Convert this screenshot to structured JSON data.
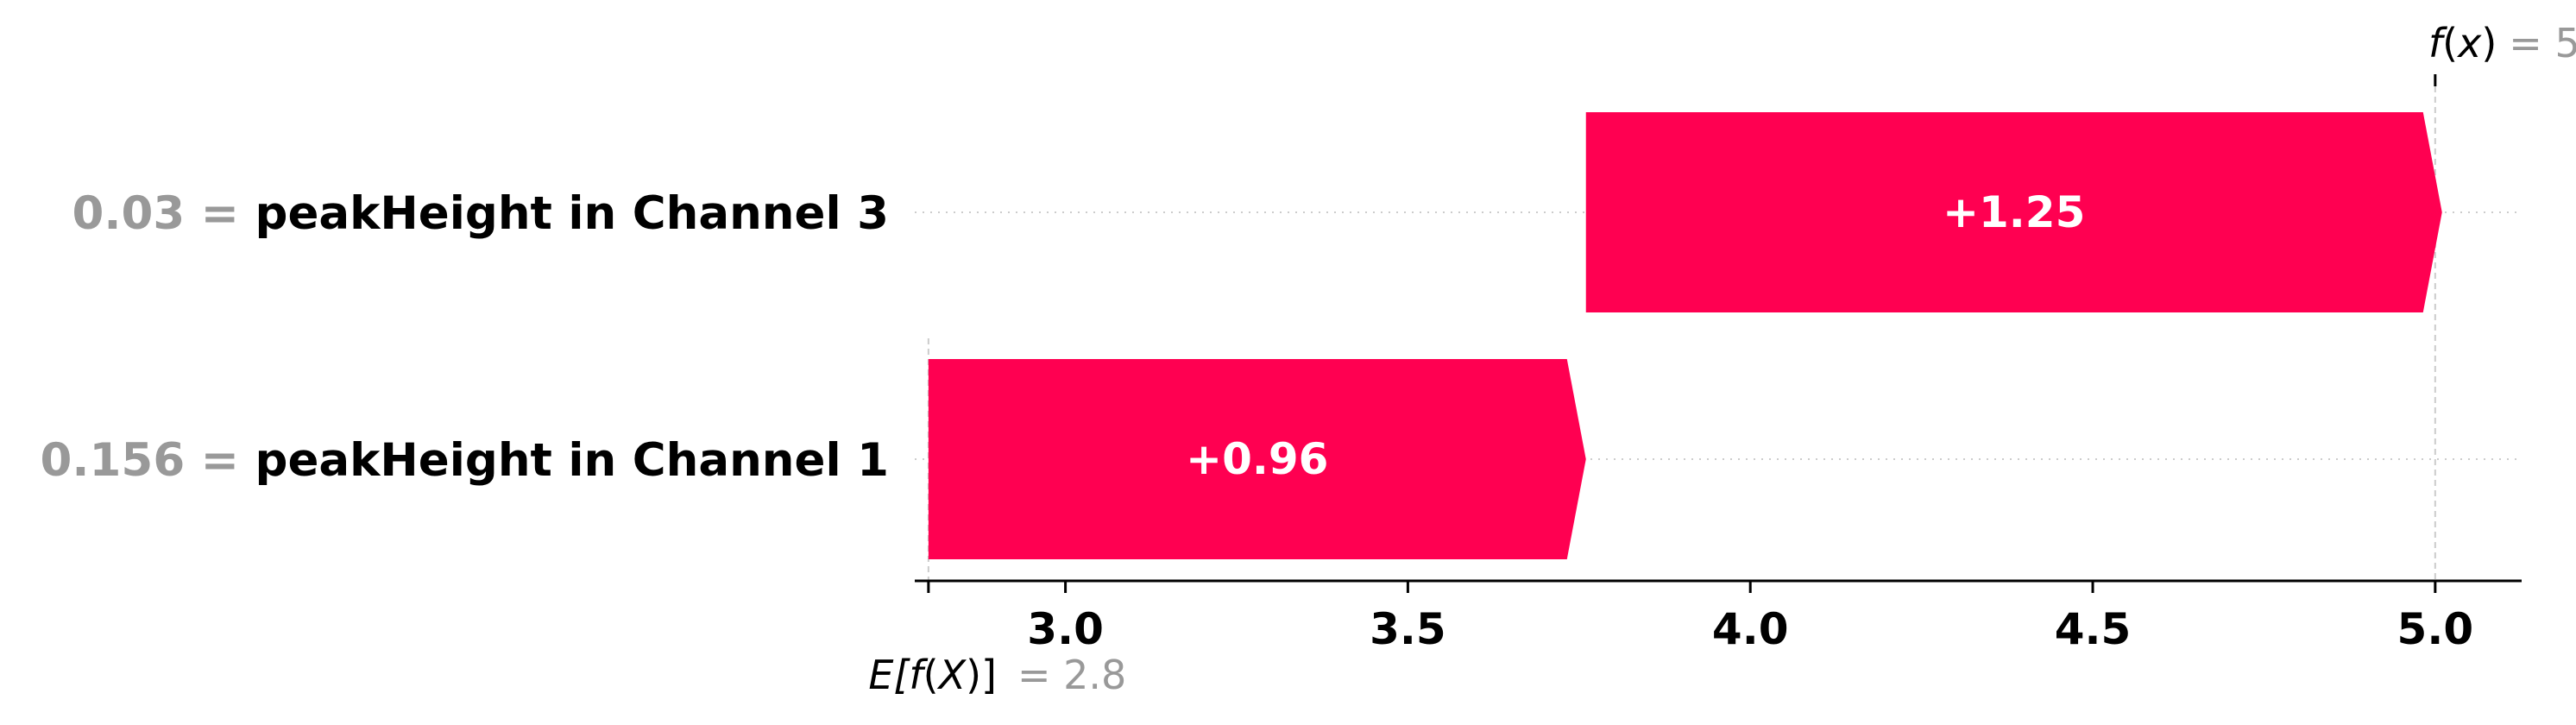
{
  "chart_data": {
    "type": "waterfall",
    "base_value": 2.8,
    "output_value": 5,
    "xlim": [
      2.78,
      5.13
    ],
    "xticks": [
      3.0,
      3.5,
      4.0,
      4.5,
      5.0
    ],
    "xtick_labels": [
      "3.0",
      "3.5",
      "4.0",
      "4.5",
      "5.0"
    ],
    "features": [
      {
        "value_label": "0.03 =",
        "name": "peakHeight in Channel 3",
        "start": 3.76,
        "contribution": 1.25,
        "label": "+1.25"
      },
      {
        "value_label": "0.156 =",
        "name": "peakHeight in Channel 1",
        "start": 2.8,
        "contribution": 0.96,
        "label": "+0.96"
      }
    ],
    "annotations": {
      "top": {
        "fn": "f",
        "arg": "x",
        "eq": "= 5"
      },
      "bottom": {
        "open": "E[",
        "fn": "f",
        "arg": "X",
        "close": ")]",
        "eq": "= 2.8"
      }
    },
    "colors": {
      "positive": "#ff0051",
      "grid": "#cccccc",
      "muted": "#999999"
    }
  }
}
